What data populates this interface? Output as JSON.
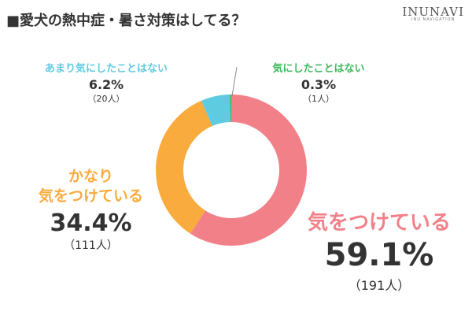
{
  "header": {
    "title": "■愛犬の熱中症・暑さ対策はしてる？",
    "brand": "INUNAVI",
    "brand_sub": "INU NAVIGATION"
  },
  "chart_data": {
    "type": "pie",
    "title": "■愛犬の熱中症・暑さ対策はしてる？",
    "slices": [
      {
        "label": "気をつけている",
        "label_lines": [
          "気をつけている"
        ],
        "percent": 59.1,
        "percent_text": "59.1%",
        "count_text": "（191人）",
        "color": "#f28089"
      },
      {
        "label": "かなり気をつけている",
        "label_lines": [
          "かなり",
          "気をつけている"
        ],
        "percent": 34.4,
        "percent_text": "34.4%",
        "count_text": "（111人）",
        "color": "#f9ab3e"
      },
      {
        "label": "あまり気にしたことはない",
        "label_lines": [
          "あまり気にしたことはない"
        ],
        "percent": 6.2,
        "percent_text": "6.2%",
        "count_text": "（20人）",
        "color": "#5fcbe0"
      },
      {
        "label": "気にしたことはない",
        "label_lines": [
          "気にしたことはない"
        ],
        "percent": 0.3,
        "percent_text": "0.3%",
        "count_text": "（1人）",
        "color": "#3bba5b"
      }
    ]
  }
}
